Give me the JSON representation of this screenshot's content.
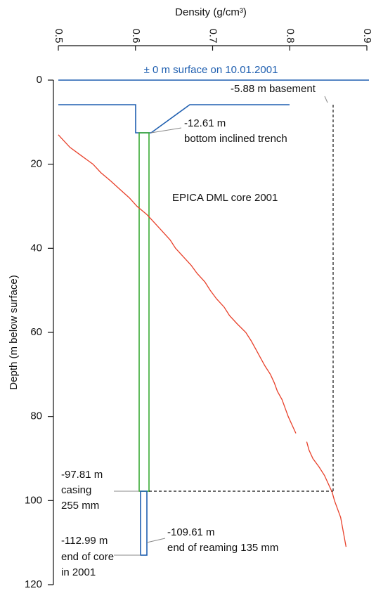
{
  "chart_data": {
    "type": "line",
    "x_label": "Density (g/cm³)",
    "y_label": "Depth (m below surface)",
    "xlim": [
      0.5,
      0.9
    ],
    "xticks": [
      0.5,
      0.6,
      0.7,
      0.8,
      0.9
    ],
    "ylim": [
      0,
      120
    ],
    "yticks": [
      0,
      20,
      40,
      60,
      80,
      100,
      120
    ],
    "depths": [
      13,
      14,
      16,
      18,
      20,
      22,
      24,
      26,
      28,
      30,
      32,
      34,
      36,
      38,
      40,
      42,
      44,
      46,
      48,
      50,
      52,
      54,
      56,
      58,
      60,
      62,
      64,
      66,
      68,
      70,
      72,
      74,
      76,
      78,
      80,
      82,
      84,
      85,
      86,
      88,
      90,
      92,
      94,
      96,
      98,
      100,
      102,
      104,
      106,
      108,
      110,
      111
    ],
    "series": [
      {
        "color": "#e8402a",
        "values": [
          0.5,
          0.505,
          0.515,
          0.53,
          0.545,
          0.555,
          0.568,
          0.58,
          0.592,
          0.602,
          0.615,
          0.625,
          0.635,
          0.645,
          0.652,
          0.662,
          0.672,
          0.68,
          0.69,
          0.697,
          0.705,
          0.715,
          0.722,
          0.732,
          0.743,
          0.75,
          0.756,
          0.762,
          0.768,
          0.775,
          0.78,
          0.784,
          0.79,
          0.794,
          0.798,
          0.803,
          0.808,
          null,
          0.822,
          0.825,
          0.83,
          0.838,
          0.845,
          0.85,
          0.855,
          0.858,
          0.862,
          0.866,
          0.868,
          0.87,
          0.872,
          0.873
        ]
      }
    ],
    "annotations": [
      {
        "text": "± 0 m surface on 10.01.2001",
        "color": "#1f5fb0"
      },
      {
        "text": "-5.88 m basement"
      },
      {
        "text": "-12.61 m"
      },
      {
        "text": "bottom inclined trench"
      },
      {
        "text": "EPICA DML core 2001"
      },
      {
        "text": "-97.81 m"
      },
      {
        "text": "casing"
      },
      {
        "text": "255 mm"
      },
      {
        "text": "-109.61 m"
      },
      {
        "text": "end of reaming 135 mm"
      },
      {
        "text": "-112.99 m"
      },
      {
        "text": "end of core"
      },
      {
        "text": "in 2001"
      }
    ]
  }
}
